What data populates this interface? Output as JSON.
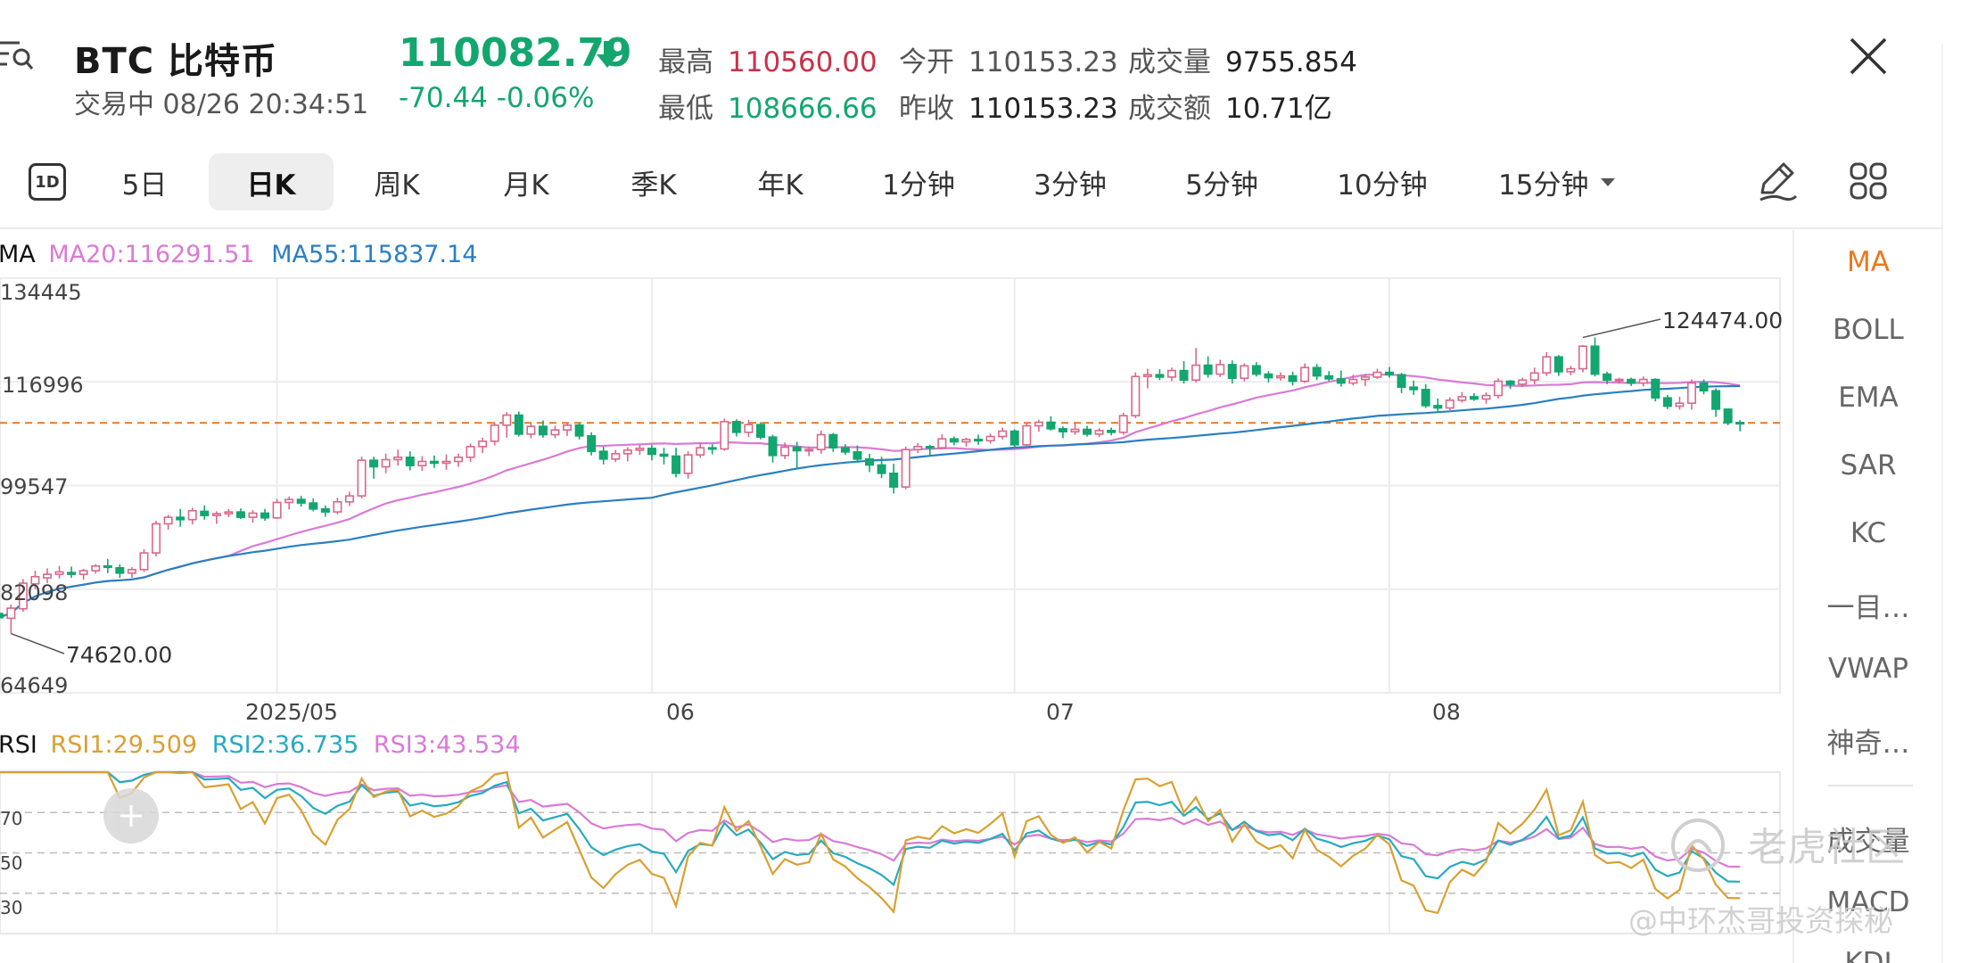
{
  "header": {
    "symbol": "BTC  比特币",
    "status": "交易中  08/26 20:34:51",
    "price": "110082.79",
    "change": "-70.44  -0.06%",
    "stats": {
      "high_label": "最高",
      "high": "110560.00",
      "low_label": "最低",
      "low": "108666.66",
      "open_label": "今开",
      "open": "110153.23",
      "prev_close_label": "昨收",
      "prev_close": "110153.23",
      "volume_label": "成交量",
      "volume": "9755.854",
      "turnover_label": "成交额",
      "turnover": "10.71亿"
    }
  },
  "tabs": {
    "icon_1d": "1D",
    "items": [
      "5日",
      "日K",
      "周K",
      "月K",
      "季K",
      "年K",
      "1分钟",
      "3分钟",
      "5分钟",
      "10分钟",
      "15分钟"
    ],
    "active": "日K"
  },
  "indicators": {
    "items": [
      "MA",
      "BOLL",
      "EMA",
      "SAR",
      "KC",
      "一目…",
      "VWAP",
      "神奇…"
    ],
    "active": "MA",
    "sub_items": [
      "成交量",
      "MACD",
      "KDJ"
    ]
  },
  "main_legend": {
    "name": "MA",
    "ma20": "MA20:116291.51",
    "ma55": "MA55:115837.14"
  },
  "rsi_legend": {
    "name": "RSI",
    "rsi1": "RSI1:29.509",
    "rsi2": "RSI2:36.735",
    "rsi3": "RSI3:43.534"
  },
  "y_ticks": [
    "134445",
    "116996",
    "99547",
    "82098",
    "64649"
  ],
  "rsi_ticks": [
    "70",
    "50",
    "30"
  ],
  "x_ticks": [
    "2025/05",
    "06",
    "07",
    "08"
  ],
  "annotations": {
    "high": "124474.00",
    "low": "74620.00"
  },
  "watermark": {
    "main": "老虎社区",
    "sub": "@中环杰哥投资探秘"
  },
  "colors": {
    "up": "#d9688a",
    "down": "#13a66f",
    "ma20": "#d97ad6",
    "ma55": "#2b7fc1",
    "rsi1": "#d9a032",
    "rsi2": "#27aabf",
    "rsi3": "#d97ad6",
    "last_price_line": "#e9781f",
    "accent": "#e9781f"
  },
  "chart_data": [
    {
      "type": "candlestick",
      "title": "",
      "y_ticks": [
        134445,
        116996,
        99547,
        82098,
        64649
      ],
      "ylim": [
        64649,
        134445
      ],
      "x_ticks": [
        "2025/05",
        "06",
        "07",
        "08"
      ],
      "annotations": [
        {
          "label": "124474.00",
          "value": 124474.0
        },
        {
          "label": "74620.00",
          "value": 74620.0
        }
      ],
      "last_price": 110082.79,
      "start_date": "2025-04-08",
      "candles": [
        [
          78000,
          79800,
          75900,
          77300
        ],
        [
          77200,
          79500,
          74620,
          78900
        ],
        [
          78800,
          83800,
          78300,
          83100
        ],
        [
          83000,
          85200,
          82100,
          84200
        ],
        [
          84000,
          85600,
          83100,
          84600
        ],
        [
          84600,
          86000,
          83900,
          85000
        ],
        [
          84900,
          85900,
          84000,
          84600
        ],
        [
          84600,
          85500,
          83700,
          85200
        ],
        [
          85200,
          86300,
          84700,
          86000
        ],
        [
          86000,
          87200,
          84800,
          85800
        ],
        [
          85700,
          86300,
          84000,
          84800
        ],
        [
          84800,
          85800,
          84000,
          85400
        ],
        [
          85400,
          88800,
          85000,
          88200
        ],
        [
          88200,
          93600,
          87600,
          93100
        ],
        [
          93100,
          94600,
          92100,
          94200
        ],
        [
          94200,
          95600,
          92600,
          93800
        ],
        [
          93800,
          95800,
          93000,
          95300
        ],
        [
          95200,
          96200,
          93800,
          94500
        ],
        [
          94500,
          95200,
          93100,
          94800
        ],
        [
          94800,
          95600,
          94200,
          95100
        ],
        [
          95100,
          95700,
          93900,
          94200
        ],
        [
          94200,
          95400,
          93300,
          94900
        ],
        [
          94900,
          95600,
          93600,
          94100
        ],
        [
          94100,
          97300,
          93900,
          96700
        ],
        [
          96700,
          97700,
          95500,
          97200
        ],
        [
          97200,
          97800,
          96000,
          96600
        ],
        [
          96600,
          97400,
          95200,
          95600
        ],
        [
          95600,
          96200,
          94300,
          95100
        ],
        [
          95100,
          97500,
          94700,
          96800
        ],
        [
          96800,
          98500,
          96100,
          97800
        ],
        [
          97800,
          104400,
          97400,
          103800
        ],
        [
          103800,
          104400,
          100700,
          102700
        ],
        [
          102700,
          104900,
          101600,
          103900
        ],
        [
          103900,
          105600,
          102900,
          104300
        ],
        [
          104300,
          105300,
          102100,
          102900
        ],
        [
          102900,
          104500,
          102000,
          103600
        ],
        [
          103600,
          104600,
          102500,
          103300
        ],
        [
          103300,
          104800,
          102200,
          103600
        ],
        [
          103600,
          104900,
          102700,
          104300
        ],
        [
          104300,
          106600,
          103500,
          106100
        ],
        [
          106100,
          107600,
          105000,
          107000
        ],
        [
          107000,
          110200,
          106300,
          109700
        ],
        [
          109700,
          111900,
          107600,
          111400
        ],
        [
          111400,
          112000,
          107800,
          108200
        ],
        [
          108200,
          110000,
          107500,
          109500
        ],
        [
          109500,
          110500,
          107600,
          108100
        ],
        [
          108100,
          109600,
          107500,
          108900
        ],
        [
          108900,
          110200,
          107900,
          109700
        ],
        [
          109700,
          110000,
          107300,
          107900
        ],
        [
          107900,
          108500,
          104600,
          105300
        ],
        [
          105300,
          106100,
          103100,
          104000
        ],
        [
          104000,
          105500,
          103500,
          104900
        ],
        [
          104900,
          106000,
          103600,
          105500
        ],
        [
          105500,
          106500,
          104700,
          105800
        ],
        [
          105800,
          106400,
          103800,
          104800
        ],
        [
          104800,
          105900,
          103100,
          104500
        ],
        [
          104500,
          105900,
          100900,
          101600
        ],
        [
          101600,
          105300,
          100700,
          104700
        ],
        [
          104700,
          106700,
          104200,
          105900
        ],
        [
          105900,
          106500,
          104800,
          105700
        ],
        [
          105700,
          110800,
          105400,
          110300
        ],
        [
          110300,
          110700,
          107800,
          108500
        ],
        [
          108500,
          110600,
          107700,
          109800
        ],
        [
          109800,
          110200,
          107300,
          107700
        ],
        [
          107700,
          108100,
          103400,
          104600
        ],
        [
          104600,
          106800,
          104000,
          106000
        ],
        [
          106000,
          106900,
          102400,
          105400
        ],
        [
          105400,
          106100,
          104500,
          105600
        ],
        [
          105600,
          108800,
          104900,
          108100
        ],
        [
          108100,
          108400,
          105200,
          105900
        ],
        [
          105900,
          106500,
          104700,
          105200
        ],
        [
          105200,
          106300,
          103400,
          104000
        ],
        [
          104000,
          104900,
          101800,
          103000
        ],
        [
          103000,
          104400,
          100800,
          101600
        ],
        [
          101600,
          103200,
          98200,
          99300
        ],
        [
          99300,
          106100,
          98900,
          105600
        ],
        [
          105600,
          106700,
          105000,
          106100
        ],
        [
          106100,
          106400,
          104400,
          105900
        ],
        [
          105900,
          108200,
          105700,
          107400
        ],
        [
          107400,
          107800,
          106300,
          106900
        ],
        [
          106900,
          107600,
          106100,
          107300
        ],
        [
          107300,
          108100,
          106400,
          107100
        ],
        [
          107100,
          108300,
          106600,
          107800
        ],
        [
          107800,
          109300,
          107300,
          108700
        ],
        [
          108700,
          109000,
          105800,
          106400
        ],
        [
          106400,
          110200,
          106100,
          109600
        ],
        [
          109600,
          110600,
          108600,
          110200
        ],
        [
          110200,
          111200,
          108800,
          109100
        ],
        [
          109100,
          109500,
          107500,
          108600
        ],
        [
          108600,
          110100,
          108100,
          109000
        ],
        [
          109000,
          109600,
          107800,
          108200
        ],
        [
          108200,
          109200,
          107700,
          108800
        ],
        [
          108800,
          109300,
          108000,
          108500
        ],
        [
          108500,
          111800,
          108100,
          111300
        ],
        [
          111300,
          118600,
          110900,
          117900
        ],
        [
          117900,
          119200,
          115900,
          118200
        ],
        [
          118200,
          119100,
          117300,
          117800
        ],
        [
          117800,
          119400,
          117100,
          118900
        ],
        [
          118900,
          120500,
          116700,
          117300
        ],
        [
          117300,
          122700,
          116900,
          119800
        ],
        [
          119800,
          121300,
          117700,
          118300
        ],
        [
          118300,
          120700,
          117800,
          119900
        ],
        [
          119900,
          120600,
          116700,
          117600
        ],
        [
          117600,
          120100,
          117100,
          119700
        ],
        [
          119700,
          120300,
          117900,
          118300
        ],
        [
          118300,
          118800,
          116900,
          117700
        ],
        [
          117700,
          118600,
          117200,
          118000
        ],
        [
          118000,
          118700,
          116400,
          117100
        ],
        [
          117100,
          120100,
          116800,
          119400
        ],
        [
          119400,
          120000,
          117300,
          118000
        ],
        [
          118000,
          118800,
          117100,
          117500
        ],
        [
          117500,
          118900,
          116200,
          116800
        ],
        [
          116800,
          118200,
          116400,
          117400
        ],
        [
          117400,
          118300,
          116300,
          117800
        ],
        [
          117800,
          119200,
          117500,
          118600
        ],
        [
          118600,
          119500,
          117700,
          118200
        ],
        [
          118200,
          118500,
          115100,
          116100
        ],
        [
          116100,
          117200,
          114800,
          115700
        ],
        [
          115700,
          116600,
          112600,
          113000
        ],
        [
          113000,
          114200,
          111800,
          112600
        ],
        [
          112600,
          114400,
          112000,
          113900
        ],
        [
          113900,
          115300,
          113500,
          114500
        ],
        [
          114500,
          115100,
          113800,
          114100
        ],
        [
          114100,
          115200,
          113300,
          114700
        ],
        [
          114700,
          117600,
          114200,
          117100
        ],
        [
          117100,
          117300,
          115800,
          116600
        ],
        [
          116600,
          117700,
          116100,
          117300
        ],
        [
          117300,
          119400,
          116600,
          118500
        ],
        [
          118500,
          122000,
          118000,
          121200
        ],
        [
          121200,
          121500,
          118000,
          118700
        ],
        [
          118700,
          119700,
          118100,
          119200
        ],
        [
          119200,
          123200,
          118600,
          123000
        ],
        [
          123000,
          124474,
          117900,
          118300
        ],
        [
          118300,
          118700,
          116600,
          117300
        ],
        [
          117300,
          117700,
          116700,
          117400
        ],
        [
          117400,
          117700,
          116300,
          116800
        ],
        [
          116800,
          117900,
          116200,
          117400
        ],
        [
          117400,
          117600,
          113700,
          114300
        ],
        [
          114300,
          114800,
          112400,
          112900
        ],
        [
          112900,
          114500,
          112300,
          113400
        ],
        [
          113400,
          117400,
          112300,
          116800
        ],
        [
          116800,
          117400,
          114900,
          115500
        ],
        [
          115500,
          115900,
          111100,
          112400
        ],
        [
          112400,
          112500,
          109700,
          110153
        ],
        [
          110153,
          110560,
          108667,
          110083
        ]
      ],
      "ma20_range": [
        83000,
        118300
      ],
      "ma55_range": [
        86800,
        115837
      ]
    },
    {
      "type": "line",
      "title": "RSI",
      "ylim": [
        10,
        90
      ],
      "y_ticks": [
        70,
        50,
        30
      ],
      "series": [
        {
          "name": "RSI1",
          "value": 29.509
        },
        {
          "name": "RSI2",
          "value": 36.735
        },
        {
          "name": "RSI3",
          "value": 43.534
        }
      ]
    }
  ]
}
